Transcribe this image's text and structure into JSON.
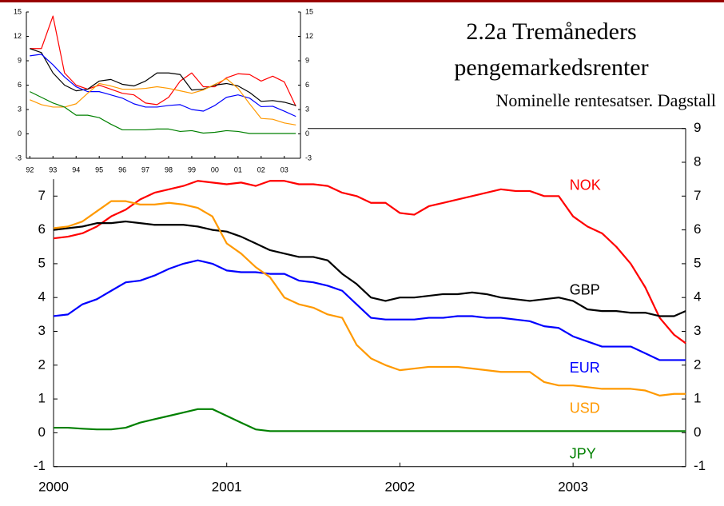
{
  "chart_data": [
    {
      "type": "line",
      "title": [
        "2.2a Tremåneders",
        "pengemarkedsrenter"
      ],
      "subtitle": "Nominelle rentesatser. Dagstall",
      "x": [
        2000,
        2000.083,
        2000.167,
        2000.25,
        2000.333,
        2000.417,
        2000.5,
        2000.583,
        2000.667,
        2000.75,
        2000.833,
        2000.917,
        2001,
        2001.083,
        2001.167,
        2001.25,
        2001.333,
        2001.417,
        2001.5,
        2001.583,
        2001.667,
        2001.75,
        2001.833,
        2001.917,
        2002,
        2002.083,
        2002.167,
        2002.25,
        2002.333,
        2002.417,
        2002.5,
        2002.583,
        2002.667,
        2002.75,
        2002.833,
        2002.917,
        2003,
        2003.083,
        2003.167,
        2003.25,
        2003.333,
        2003.417,
        2003.5,
        2003.583,
        2003.65
      ],
      "xlim": [
        2000,
        2003.65
      ],
      "xticks": [
        2000,
        2001,
        2002,
        2003
      ],
      "ylim": [
        -1,
        9
      ],
      "yticks": [
        -1,
        0,
        1,
        2,
        3,
        4,
        5,
        6,
        7
      ],
      "y2lim": [
        -1,
        9
      ],
      "y2ticks": [
        -1,
        0,
        1,
        2,
        3,
        4,
        5,
        6,
        7,
        8,
        9
      ],
      "series": [
        {
          "name": "NOK",
          "color": "#ff0000",
          "values": [
            5.75,
            5.8,
            5.9,
            6.1,
            6.4,
            6.6,
            6.9,
            7.1,
            7.2,
            7.3,
            7.45,
            7.4,
            7.35,
            7.4,
            7.3,
            7.45,
            7.45,
            7.35,
            7.35,
            7.3,
            7.1,
            7.0,
            6.8,
            6.8,
            6.5,
            6.45,
            6.7,
            6.8,
            6.9,
            7.0,
            7.1,
            7.2,
            7.15,
            7.15,
            7.0,
            7.0,
            6.4,
            6.1,
            5.9,
            5.5,
            5.0,
            4.3,
            3.4,
            2.9,
            2.65
          ]
        },
        {
          "name": "GBP",
          "color": "#000000",
          "values": [
            6.0,
            6.05,
            6.1,
            6.2,
            6.2,
            6.25,
            6.2,
            6.15,
            6.15,
            6.15,
            6.1,
            6.0,
            5.95,
            5.8,
            5.6,
            5.4,
            5.3,
            5.2,
            5.2,
            5.1,
            4.7,
            4.4,
            4.0,
            3.9,
            4.0,
            4.0,
            4.05,
            4.1,
            4.1,
            4.15,
            4.1,
            4.0,
            3.95,
            3.9,
            3.95,
            4.0,
            3.9,
            3.65,
            3.6,
            3.6,
            3.55,
            3.55,
            3.45,
            3.45,
            3.6
          ]
        },
        {
          "name": "EUR",
          "color": "#0000ff",
          "values": [
            3.45,
            3.5,
            3.8,
            3.95,
            4.2,
            4.45,
            4.5,
            4.65,
            4.85,
            5.0,
            5.1,
            5.0,
            4.8,
            4.75,
            4.75,
            4.7,
            4.7,
            4.5,
            4.45,
            4.35,
            4.2,
            3.8,
            3.4,
            3.35,
            3.35,
            3.35,
            3.4,
            3.4,
            3.45,
            3.45,
            3.4,
            3.4,
            3.35,
            3.3,
            3.15,
            3.1,
            2.85,
            2.7,
            2.55,
            2.55,
            2.55,
            2.35,
            2.15,
            2.15,
            2.15
          ]
        },
        {
          "name": "USD",
          "color": "#ff9900",
          "values": [
            6.05,
            6.1,
            6.25,
            6.55,
            6.85,
            6.85,
            6.75,
            6.75,
            6.8,
            6.75,
            6.65,
            6.4,
            5.6,
            5.3,
            4.9,
            4.6,
            4.0,
            3.8,
            3.7,
            3.5,
            3.4,
            2.6,
            2.2,
            2.0,
            1.85,
            1.9,
            1.95,
            1.95,
            1.95,
            1.9,
            1.85,
            1.8,
            1.8,
            1.8,
            1.5,
            1.4,
            1.4,
            1.35,
            1.3,
            1.3,
            1.3,
            1.25,
            1.1,
            1.15,
            1.15
          ]
        },
        {
          "name": "JPY",
          "color": "#008000",
          "values": [
            0.15,
            0.15,
            0.12,
            0.1,
            0.1,
            0.15,
            0.3,
            0.4,
            0.5,
            0.6,
            0.7,
            0.7,
            0.5,
            0.3,
            0.1,
            0.05,
            0.05,
            0.05,
            0.05,
            0.05,
            0.05,
            0.05,
            0.05,
            0.05,
            0.05,
            0.05,
            0.05,
            0.05,
            0.05,
            0.05,
            0.05,
            0.05,
            0.05,
            0.05,
            0.05,
            0.05,
            0.05,
            0.05,
            0.05,
            0.05,
            0.05,
            0.05,
            0.05,
            0.05,
            0.05
          ]
        }
      ]
    },
    {
      "type": "line",
      "x": [
        1992,
        1992.5,
        1993,
        1993.5,
        1994,
        1994.5,
        1995,
        1995.5,
        1996,
        1996.5,
        1997,
        1997.5,
        1998,
        1998.5,
        1999,
        1999.5,
        2000,
        2000.5,
        2001,
        2001.5,
        2002,
        2002.5,
        2003,
        2003.5
      ],
      "xlim": [
        1991.85,
        2003.7
      ],
      "xticks": [
        {
          "value": 1992,
          "label": "92"
        },
        {
          "value": 1993,
          "label": "93"
        },
        {
          "value": 1994,
          "label": "94"
        },
        {
          "value": 1995,
          "label": "95"
        },
        {
          "value": 1996,
          "label": "96"
        },
        {
          "value": 1997,
          "label": "97"
        },
        {
          "value": 1998,
          "label": "98"
        },
        {
          "value": 1999,
          "label": "99"
        },
        {
          "value": 2000,
          "label": "00"
        },
        {
          "value": 2001,
          "label": "01"
        },
        {
          "value": 2002,
          "label": "02"
        },
        {
          "value": 2003,
          "label": "03"
        }
      ],
      "ylim": [
        -3,
        15
      ],
      "yticks": [
        -3,
        0,
        3,
        6,
        9,
        12,
        15
      ],
      "y2lim": [
        -3,
        15
      ],
      "y2ticks": [
        -3,
        0,
        3,
        6,
        9,
        12,
        15
      ],
      "series": [
        {
          "color": "#ff0000",
          "values": [
            10.5,
            10.5,
            14.5,
            7.5,
            6,
            5.5,
            6,
            5.5,
            5,
            4.8,
            3.8,
            3.6,
            4.5,
            6.5,
            7.5,
            5.8,
            5.8,
            6.9,
            7.4,
            7.3,
            6.5,
            7.1,
            6.4,
            3.4
          ]
        },
        {
          "color": "#000000",
          "values": [
            10.5,
            10,
            7.5,
            6,
            5.3,
            5.5,
            6.5,
            6.7,
            6.1,
            5.9,
            6.5,
            7.5,
            7.5,
            7.3,
            5.4,
            5.5,
            6.0,
            6.2,
            5.9,
            5.1,
            4.0,
            4.1,
            3.9,
            3.5
          ]
        },
        {
          "color": "#0000ff",
          "values": [
            9.6,
            9.8,
            8.5,
            7,
            5.8,
            5.2,
            5.2,
            4.8,
            4.4,
            3.7,
            3.3,
            3.3,
            3.5,
            3.6,
            3.0,
            2.8,
            3.5,
            4.5,
            4.8,
            4.4,
            3.35,
            3.4,
            2.8,
            2.15
          ]
        },
        {
          "color": "#ff9900",
          "values": [
            4.2,
            3.6,
            3.3,
            3.3,
            3.7,
            5.0,
            6.2,
            5.9,
            5.5,
            5.5,
            5.6,
            5.8,
            5.6,
            5.3,
            5.0,
            5.4,
            6.1,
            6.8,
            5.6,
            3.7,
            1.9,
            1.8,
            1.35,
            1.1
          ]
        },
        {
          "color": "#008000",
          "values": [
            5.2,
            4.5,
            3.8,
            3.3,
            2.3,
            2.3,
            2.0,
            1.2,
            0.5,
            0.5,
            0.5,
            0.6,
            0.6,
            0.3,
            0.4,
            0.1,
            0.2,
            0.4,
            0.3,
            0.05,
            0.05,
            0.05,
            0.05,
            0.05
          ]
        }
      ]
    }
  ]
}
